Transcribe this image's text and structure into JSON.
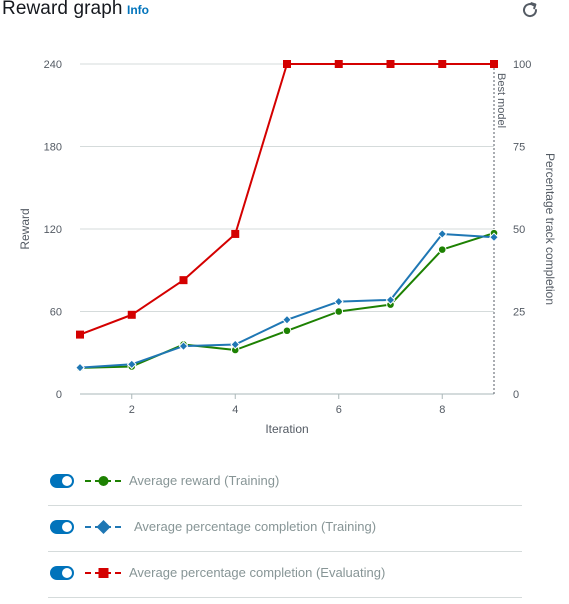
{
  "header": {
    "title": "Reward graph",
    "info_label": "Info"
  },
  "chart_data": {
    "type": "line",
    "x": [
      1,
      2,
      3,
      4,
      5,
      6,
      7,
      8,
      9
    ],
    "xlabel": "Iteration",
    "xlim": [
      1,
      9
    ],
    "xticks": [
      "2",
      "4",
      "6",
      "8"
    ],
    "ylabel": "Reward",
    "ylim": [
      0,
      240
    ],
    "yticks": [
      "0",
      "60",
      "120",
      "180",
      "240"
    ],
    "y2label": "Percentage track completion",
    "y2lim": [
      0,
      100
    ],
    "y2ticks": [
      "0",
      "25",
      "50",
      "75",
      "100"
    ],
    "grid": true,
    "marker_label": "Best model",
    "marker_x": 9,
    "series": [
      {
        "name": "Average reward (Training)",
        "axis": "left",
        "color": "#1d8102",
        "marker": "circle",
        "dashed_legend": true,
        "values": [
          19,
          20,
          36,
          32,
          46,
          60,
          65,
          105,
          117
        ]
      },
      {
        "name": "Average percentage completion (Training)",
        "axis": "right",
        "color": "#1f77b4",
        "marker": "diamond",
        "dashed_legend": true,
        "values": [
          8,
          9,
          14.5,
          15,
          22.5,
          28,
          28.5,
          48.5,
          47.5
        ]
      },
      {
        "name": "Average percentage completion (Evaluating)",
        "axis": "right",
        "color": "#d40000",
        "marker": "square",
        "dashed_legend": true,
        "values": [
          18,
          24,
          34.5,
          48.5,
          100,
          100,
          100,
          100,
          100
        ]
      }
    ]
  }
}
